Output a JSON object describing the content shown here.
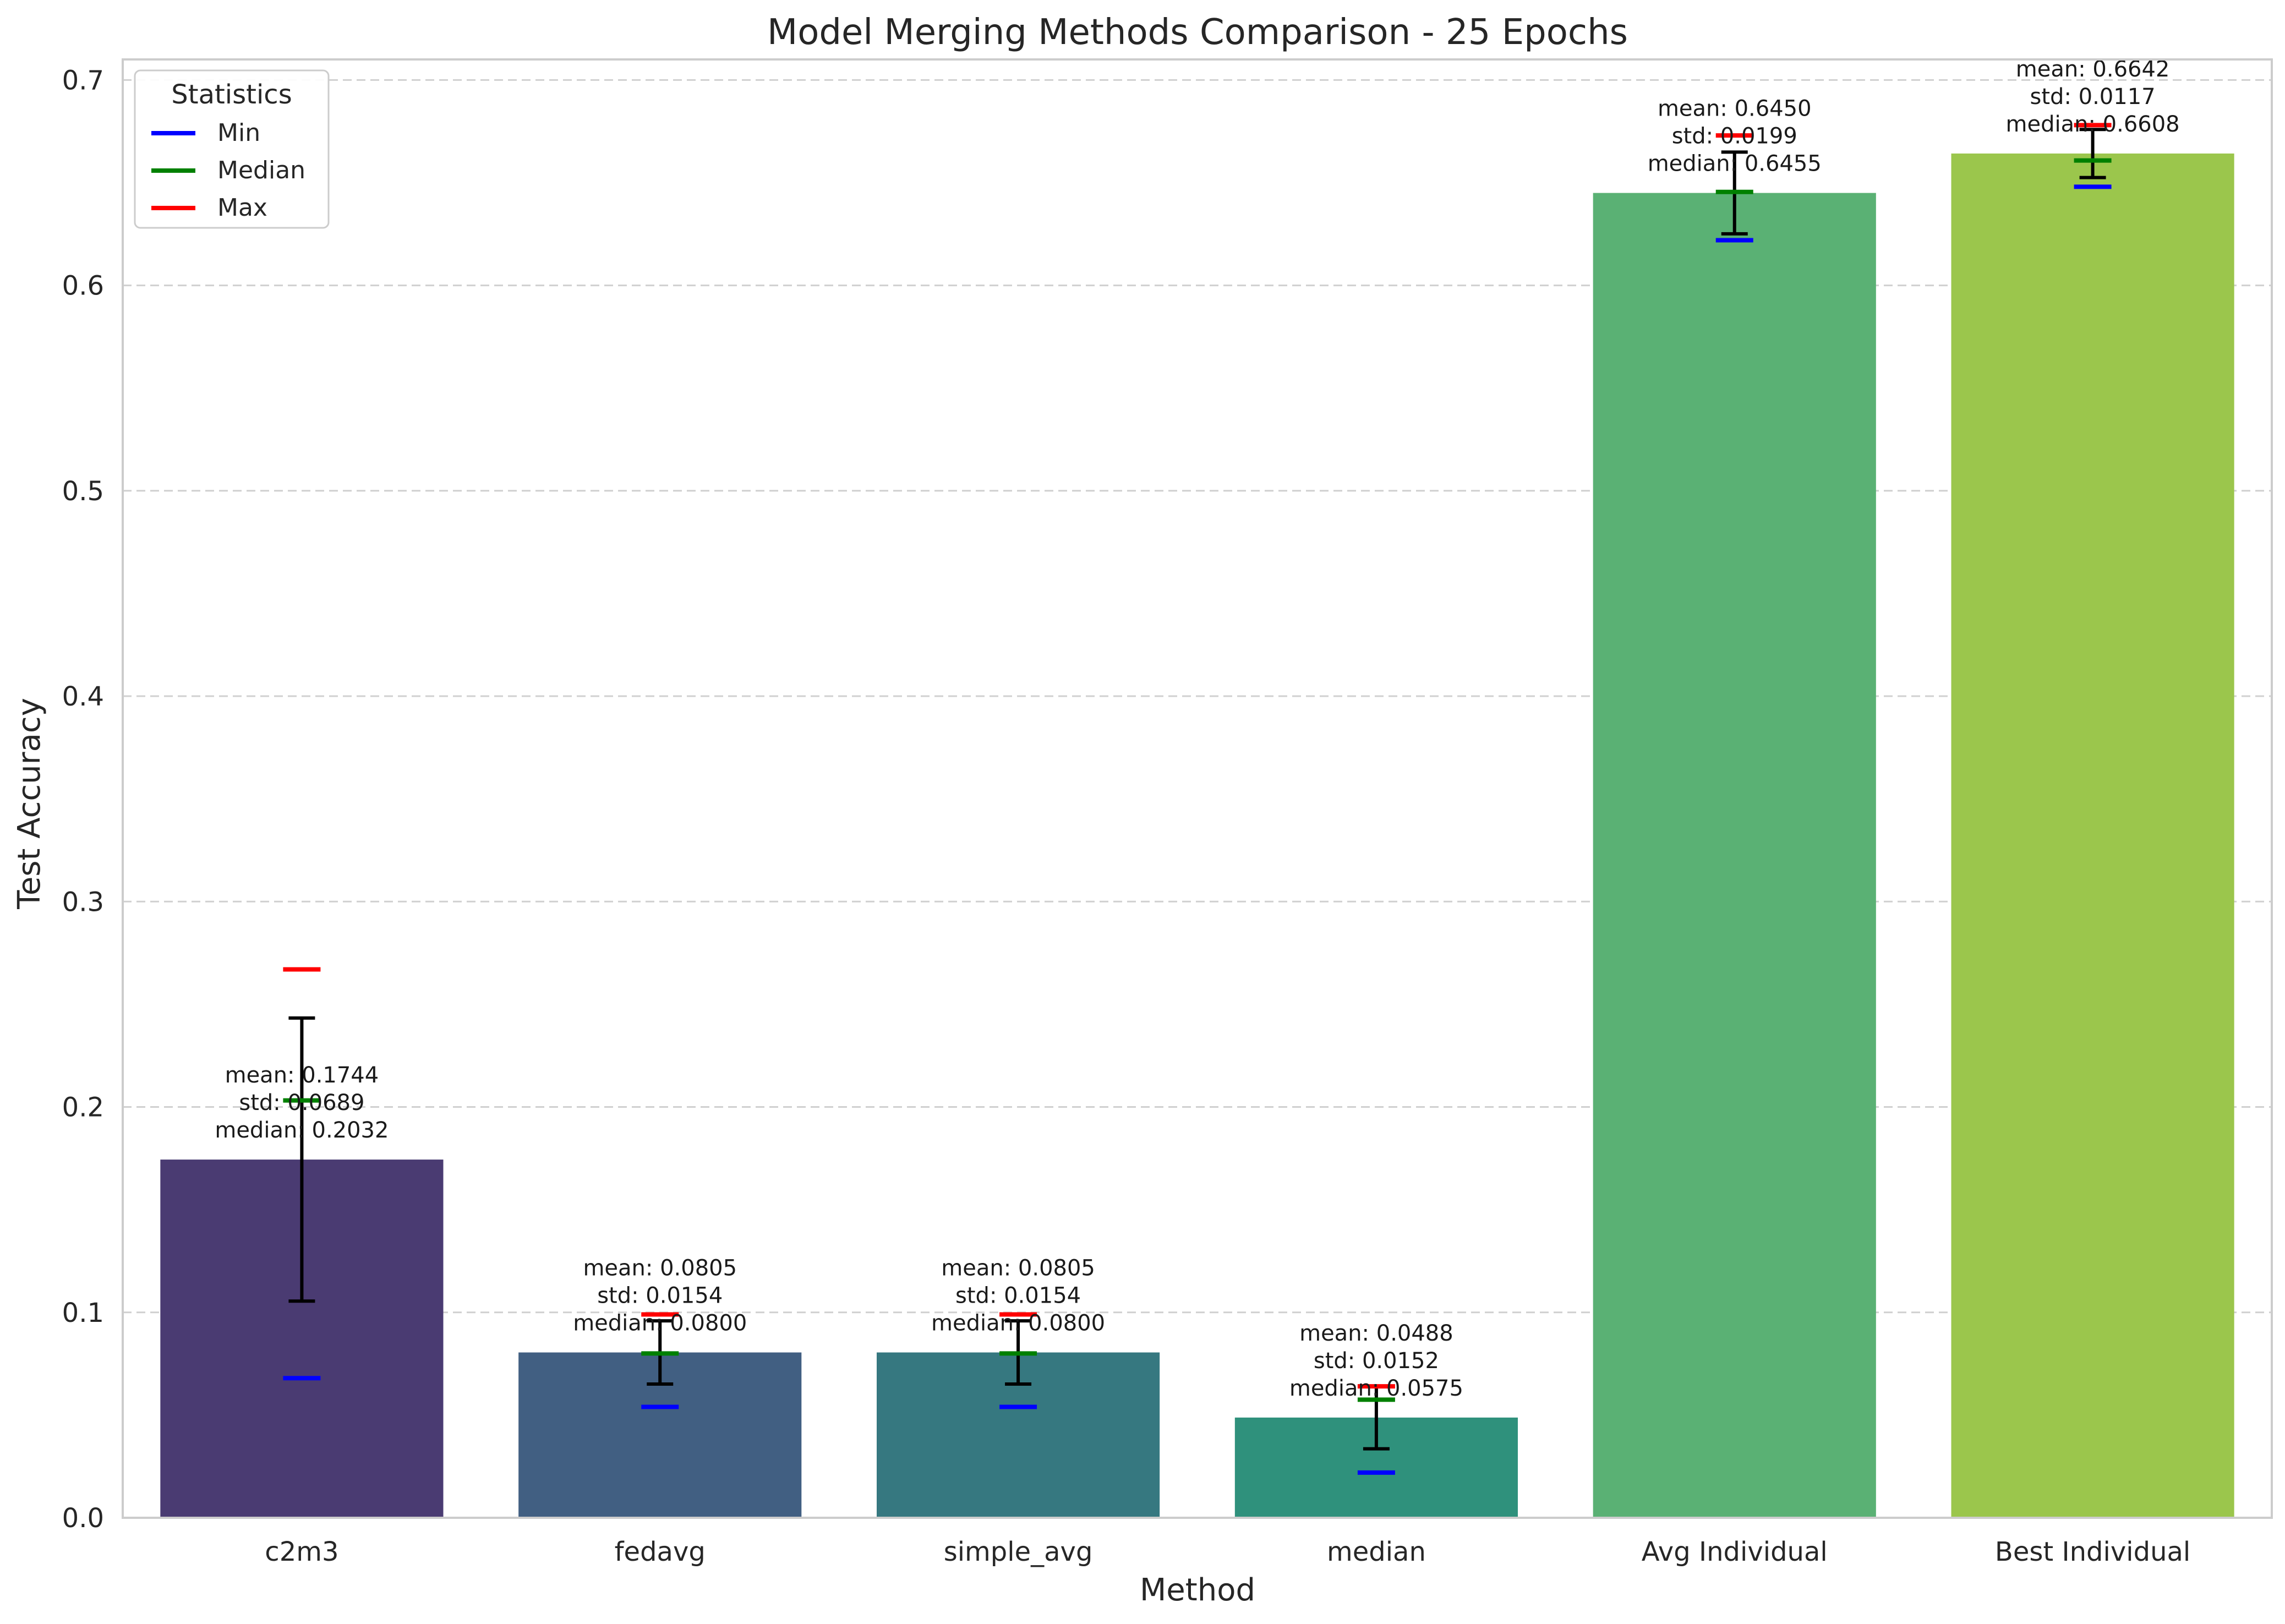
{
  "chart_data": {
    "type": "bar",
    "title": "Model Merging Methods Comparison - 25 Epochs",
    "xlabel": "Method",
    "ylabel": "Test Accuracy",
    "ylim": [
      0,
      0.71
    ],
    "yticks": [
      "0.0",
      "0.1",
      "0.2",
      "0.3",
      "0.4",
      "0.5",
      "0.6",
      "0.7"
    ],
    "grid": true,
    "legend_placement": "top-left",
    "categories": [
      "c2m3",
      "fedavg",
      "simple_avg",
      "median",
      "Avg Individual",
      "Best Individual"
    ],
    "values": [
      0.1744,
      0.0805,
      0.0805,
      0.0488,
      0.645,
      0.6642
    ],
    "std": [
      0.0689,
      0.0154,
      0.0154,
      0.0152,
      0.0199,
      0.0117
    ],
    "median": [
      0.2032,
      0.08,
      0.08,
      0.0575,
      0.6455,
      0.6608
    ],
    "min": [
      0.068,
      0.054,
      0.054,
      0.022,
      0.622,
      0.648
    ],
    "max": [
      0.267,
      0.099,
      0.099,
      0.064,
      0.673,
      0.678
    ],
    "bar_colors": [
      "#4a3b72",
      "#415f82",
      "#367880",
      "#2f917c",
      "#5ab174",
      "#9bc64c"
    ],
    "annotations": [
      [
        "mean: 0.1744",
        "std: 0.0689",
        "median: 0.2032"
      ],
      [
        "mean: 0.0805",
        "std: 0.0154",
        "median: 0.0800"
      ],
      [
        "mean: 0.0805",
        "std: 0.0154",
        "median: 0.0800"
      ],
      [
        "mean: 0.0488",
        "std: 0.0152",
        "median: 0.0575"
      ],
      [
        "mean: 0.6450",
        "std: 0.0199",
        "median: 0.6455"
      ],
      [
        "mean: 0.6642",
        "std: 0.0117",
        "median: 0.6608"
      ]
    ],
    "legend": {
      "title": "Statistics",
      "items": [
        {
          "label": "Min",
          "color": "#0000ff"
        },
        {
          "label": "Median",
          "color": "#008000"
        },
        {
          "label": "Max",
          "color": "#ff0000"
        }
      ]
    }
  }
}
